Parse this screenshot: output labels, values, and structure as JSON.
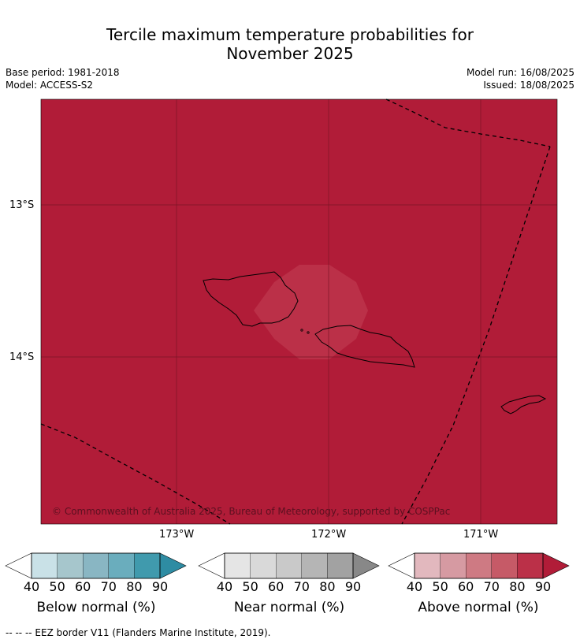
{
  "title": {
    "line1": "Tercile maximum temperature probabilities for",
    "line2": "November 2025"
  },
  "info": {
    "base_period": "Base period: 1981-2018",
    "model": "Model: ACCESS-S2",
    "model_run": "Model run: 16/08/2025",
    "issued": "Issued: 18/08/2025"
  },
  "map": {
    "background_color": "#b11c38",
    "patch_color": "#bb3048",
    "gridline_color": "#7a1426",
    "lat_labels": [
      "13°S",
      "14°S"
    ],
    "lon_labels": [
      "173°W",
      "172°W",
      "171°W"
    ],
    "copyright": "© Commonwealth of Australia 2025, Bureau of Meteorology, supported by COSPPac"
  },
  "colorbars": [
    {
      "title": "Below normal (%)",
      "ticks": [
        "40",
        "50",
        "60",
        "70",
        "80",
        "90"
      ],
      "colors": [
        "#ffffff",
        "#c9e1e7",
        "#a6c6cc",
        "#89b6c3",
        "#6aadbd",
        "#409aad",
        "#2e8ca3"
      ]
    },
    {
      "title": "Near normal (%)",
      "ticks": [
        "40",
        "50",
        "60",
        "70",
        "80",
        "90"
      ],
      "colors": [
        "#ffffff",
        "#e5e5e5",
        "#d9d9d9",
        "#c9c9c9",
        "#b5b5b5",
        "#a2a2a2",
        "#888888"
      ]
    },
    {
      "title": "Above normal (%)",
      "ticks": [
        "40",
        "50",
        "60",
        "70",
        "80",
        "90"
      ],
      "colors": [
        "#ffffff",
        "#e2b8be",
        "#d69aa2",
        "#ce7a83",
        "#c65a67",
        "#bb3048",
        "#b11c38"
      ]
    }
  ],
  "footnote": "--  --  -- EEZ border V11 (Flanders Marine Institute, 2019)."
}
